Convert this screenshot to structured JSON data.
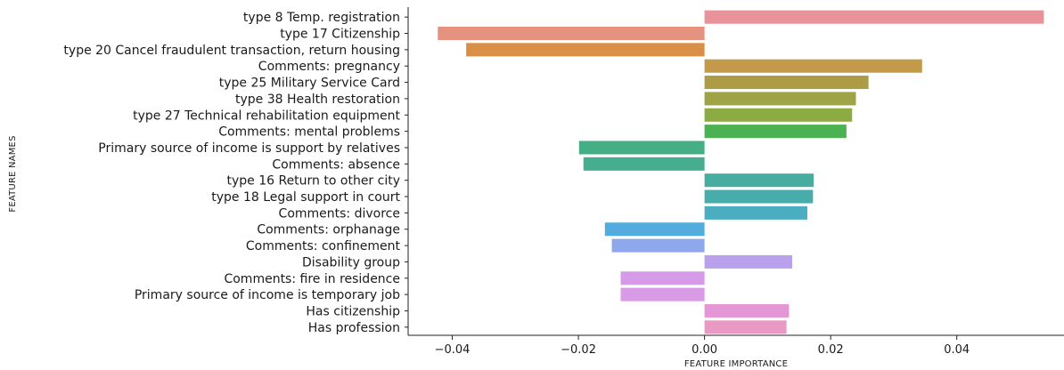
{
  "chart_data": {
    "type": "bar",
    "orientation": "horizontal",
    "xlabel": "FEATURE IMPORTANCE",
    "ylabel": "FEATURE NAMES",
    "xlim": [
      -0.047,
      0.057
    ],
    "xticks": [
      -0.04,
      -0.02,
      0.0,
      0.02,
      0.04
    ],
    "xtick_labels": [
      "−0.04",
      "−0.02",
      "0.00",
      "0.02",
      "0.04"
    ],
    "grid": false,
    "categories": [
      "type 8 Temp. registration",
      "type 17 Citizenship",
      "type 20 Cancel fraudulent transaction, return housing",
      "Comments: pregnancy",
      "type 25 Military Service Card",
      "type 38 Health restoration",
      "type 27 Technical rehabilitation equipment",
      "Comments: mental problems",
      "Primary source of income is support by relatives",
      "Comments: absence",
      "type 16 Return to other city",
      "type 18 Legal support in court",
      "Comments: divorce",
      "Comments: orphanage",
      "Comments: confinement",
      "Disability group",
      "Comments: fire in residence",
      "Primary source of income is temporary job",
      "Has citizenship",
      "Has profession"
    ],
    "values": [
      0.0538,
      -0.0423,
      -0.0378,
      0.0345,
      0.026,
      0.024,
      0.0234,
      0.0225,
      -0.0199,
      -0.0192,
      0.0173,
      0.0172,
      0.0163,
      -0.0158,
      -0.0147,
      0.0139,
      -0.0133,
      -0.0133,
      0.0134,
      0.013
    ],
    "colors": [
      "#e8929a",
      "#e59280",
      "#d98f45",
      "#c29a4a",
      "#ad9c45",
      "#9ea445",
      "#8cab43",
      "#4cb150",
      "#45ae85",
      "#46ad8f",
      "#46ad9f",
      "#48acab",
      "#4aaec0",
      "#54abdd",
      "#8fa8ec",
      "#b9a2eb",
      "#d69ae8",
      "#d99be6",
      "#e596d4",
      "#e899c4"
    ]
  }
}
